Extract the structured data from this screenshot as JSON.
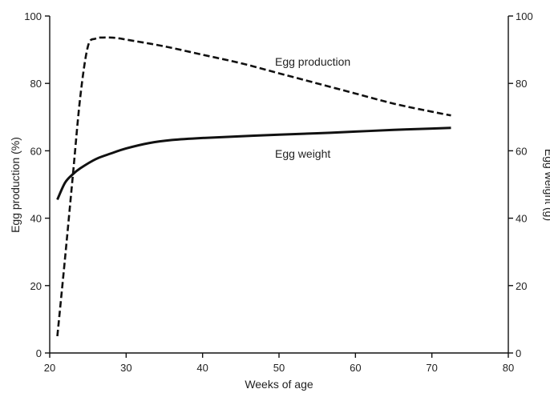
{
  "chart_data": {
    "type": "line",
    "xlabel": "Weeks of age",
    "ylabel_left": "Egg production (%)",
    "ylabel_right": "Egg weight (g)",
    "xlim": [
      20,
      80
    ],
    "ylim_left": [
      0,
      100
    ],
    "ylim_right": [
      0,
      100
    ],
    "x_ticks": [
      "20",
      "30",
      "40",
      "50",
      "60",
      "70",
      "80"
    ],
    "y_ticks_left": [
      "0",
      "20",
      "40",
      "60",
      "80",
      "100"
    ],
    "y_ticks_right": [
      "0",
      "20",
      "40",
      "60",
      "80",
      "100"
    ],
    "grid": false,
    "series": [
      {
        "name": "Egg production",
        "axis": "left",
        "style": "dashed",
        "color": "#111111",
        "x": [
          21,
          22,
          23,
          24,
          25,
          26,
          27,
          28,
          29,
          30,
          35,
          40,
          45,
          50,
          55,
          60,
          65,
          70,
          72.5
        ],
        "y": [
          5,
          28,
          52,
          76,
          91,
          93.3,
          93.6,
          93.6,
          93.4,
          93,
          91,
          88.5,
          86,
          83,
          80,
          77,
          74,
          71.6,
          70.5
        ]
      },
      {
        "name": "Egg weight",
        "axis": "right",
        "style": "solid",
        "color": "#111111",
        "x": [
          21,
          22,
          23,
          24,
          26,
          28,
          30,
          33,
          36,
          40,
          45,
          50,
          55,
          60,
          65,
          70,
          72.5
        ],
        "y": [
          45.5,
          50.5,
          53,
          54.8,
          57.5,
          59.2,
          60.7,
          62.3,
          63.2,
          63.8,
          64.3,
          64.8,
          65.2,
          65.7,
          66.2,
          66.6,
          66.8
        ]
      }
    ]
  }
}
